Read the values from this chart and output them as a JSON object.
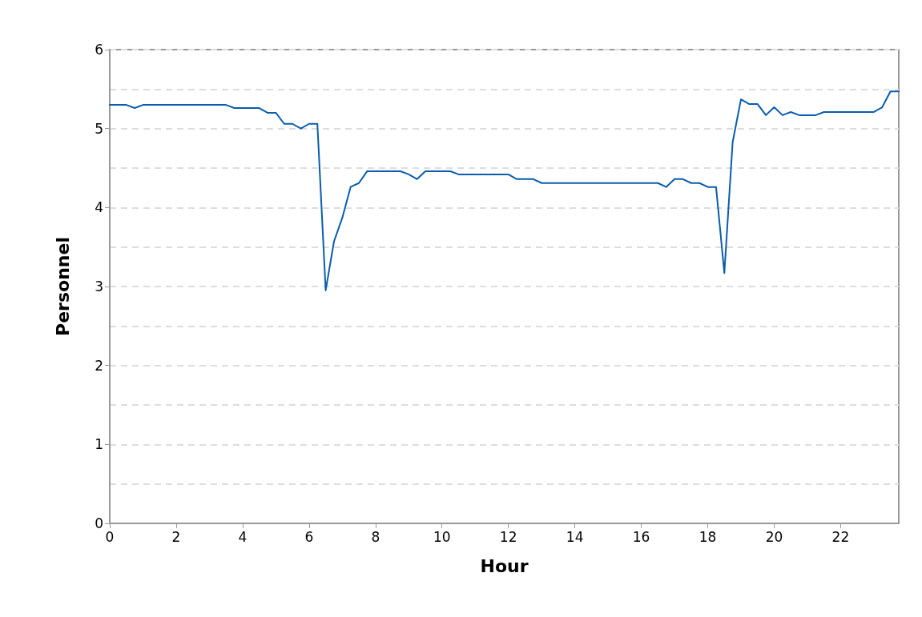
{
  "chart_data": {
    "type": "line",
    "xlabel": "Hour",
    "ylabel": "Personnel",
    "x": [
      0,
      0.25,
      0.5,
      0.75,
      1,
      1.25,
      1.5,
      1.75,
      2,
      2.25,
      2.5,
      2.75,
      3,
      3.25,
      3.5,
      3.75,
      4,
      4.25,
      4.5,
      4.75,
      5,
      5.25,
      5.5,
      5.75,
      6,
      6.25,
      6.5,
      6.75,
      7,
      7.25,
      7.5,
      7.75,
      8,
      8.25,
      8.5,
      8.75,
      9,
      9.25,
      9.5,
      9.75,
      10,
      10.25,
      10.5,
      10.75,
      11,
      11.25,
      11.5,
      11.75,
      12,
      12.25,
      12.5,
      12.75,
      13,
      13.25,
      13.5,
      13.75,
      14,
      14.25,
      14.5,
      14.75,
      15,
      15.25,
      15.5,
      15.75,
      16,
      16.25,
      16.5,
      16.75,
      17,
      17.25,
      17.5,
      17.75,
      18,
      18.25,
      18.5,
      18.75,
      19,
      19.25,
      19.5,
      19.75,
      20,
      20.25,
      20.5,
      20.75,
      21,
      21.25,
      21.5,
      21.75,
      22,
      22.25,
      22.5,
      22.75,
      23,
      23.25,
      23.5,
      23.75
    ],
    "series": [
      {
        "color": "#0b5cad",
        "values": [
          5.3,
          5.3,
          5.3,
          5.26,
          5.3,
          5.3,
          5.3,
          5.3,
          5.3,
          5.3,
          5.3,
          5.3,
          5.3,
          5.3,
          5.3,
          5.26,
          5.26,
          5.26,
          5.26,
          5.2,
          5.2,
          5.06,
          5.06,
          5.0,
          5.06,
          5.06,
          2.95,
          3.57,
          3.87,
          4.26,
          4.31,
          4.46,
          4.46,
          4.46,
          4.46,
          4.46,
          4.42,
          4.36,
          4.46,
          4.46,
          4.46,
          4.46,
          4.42,
          4.42,
          4.42,
          4.42,
          4.42,
          4.42,
          4.42,
          4.36,
          4.36,
          4.36,
          4.31,
          4.31,
          4.31,
          4.31,
          4.31,
          4.31,
          4.31,
          4.31,
          4.31,
          4.31,
          4.31,
          4.31,
          4.31,
          4.31,
          4.31,
          4.26,
          4.36,
          4.36,
          4.31,
          4.31,
          4.26,
          4.26,
          3.17,
          4.83,
          5.37,
          5.31,
          5.31,
          5.17,
          5.27,
          5.17,
          5.21,
          5.17,
          5.17,
          5.17,
          5.21,
          5.21,
          5.21,
          5.21,
          5.21,
          5.21,
          5.21,
          5.27,
          5.47,
          5.47
        ]
      }
    ],
    "xlim": [
      0,
      23.75
    ],
    "xticks": [
      0,
      2,
      4,
      6,
      8,
      10,
      12,
      14,
      16,
      18,
      20,
      22
    ],
    "ylim": [
      0,
      6
    ],
    "yticks": [
      0,
      {
        "value": 0.5,
        "label": null
      },
      1,
      {
        "value": 1.5,
        "label": null
      },
      2,
      {
        "value": 2.5,
        "label": null
      },
      3,
      {
        "value": 3.5,
        "label": null
      },
      4,
      {
        "value": 4.5,
        "label": null
      },
      5,
      {
        "value": 5.5,
        "label": null
      },
      6
    ],
    "grid": "y",
    "marker": "none",
    "line_style": "solid"
  }
}
